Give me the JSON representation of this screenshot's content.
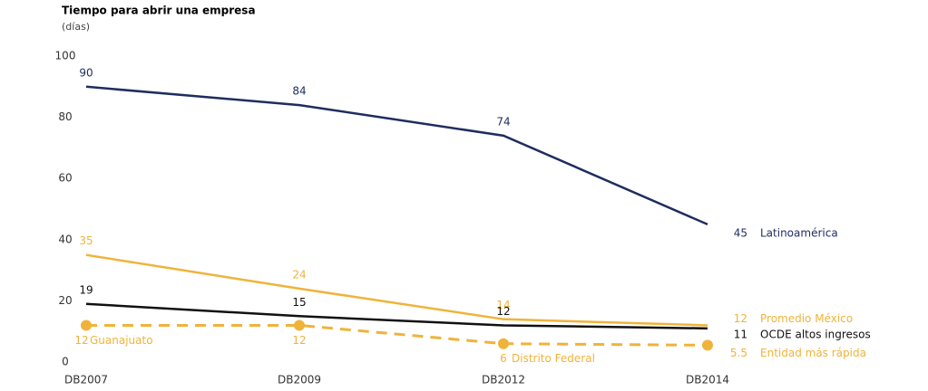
{
  "chart_data": {
    "type": "line",
    "title": "Tiempo para abrir una empresa",
    "subtitle": "(días)",
    "categories": [
      "DB2007",
      "DB2009",
      "DB2012",
      "DB2014"
    ],
    "ylim": [
      0,
      100
    ],
    "yticks": [
      0,
      20,
      40,
      60,
      80,
      100
    ],
    "series": [
      {
        "name": "Latinoamérica",
        "color": "#1f2d5e",
        "values": [
          90,
          84,
          74,
          45
        ],
        "dashed": false,
        "markers": false
      },
      {
        "name": "Promedio México",
        "color": "#f0b33a",
        "values": [
          35,
          24,
          14,
          12
        ],
        "dashed": false,
        "markers": false
      },
      {
        "name": "OCDE altos ingresos",
        "color": "#111111",
        "values": [
          19,
          15,
          12,
          11
        ],
        "dashed": false,
        "markers": false
      },
      {
        "name": "Entidad más rápida",
        "color": "#f0b33a",
        "values": [
          12,
          12,
          6,
          5.5
        ],
        "dashed": true,
        "markers": true,
        "point_notes": [
          "Guanajuato",
          null,
          "Distrito Federal",
          null
        ]
      }
    ]
  }
}
